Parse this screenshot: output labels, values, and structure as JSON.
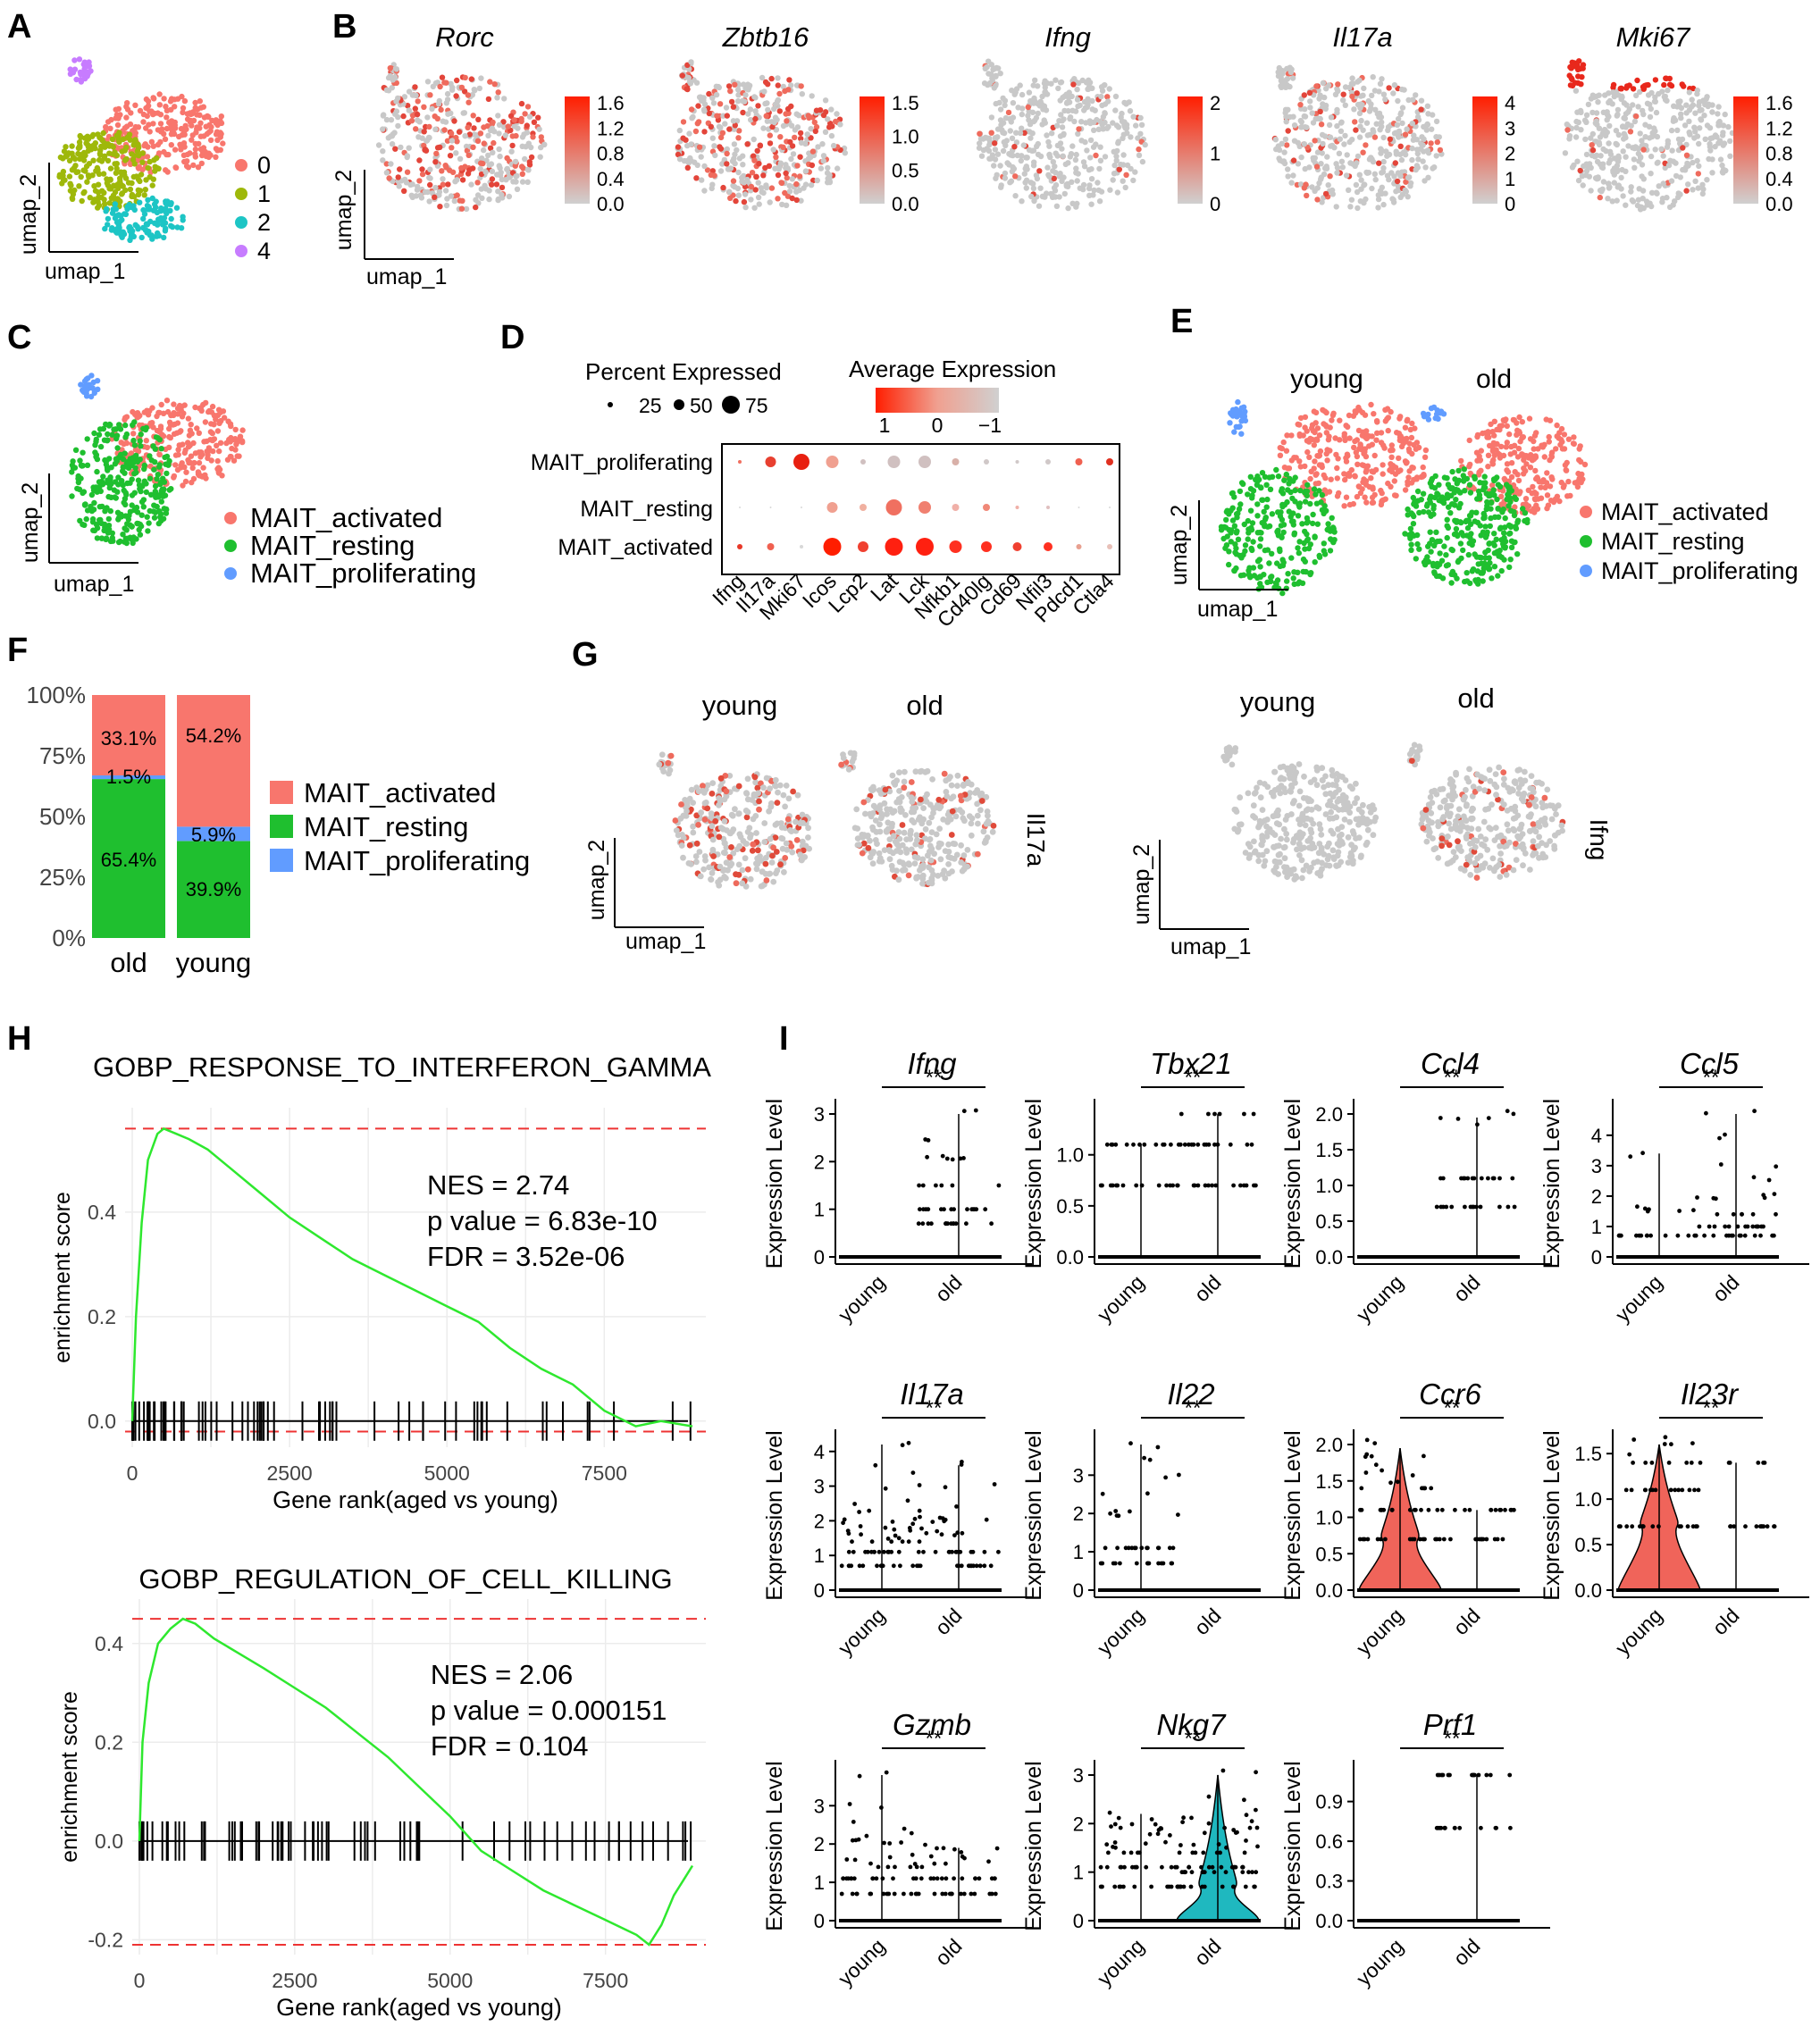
{
  "colors": {
    "activated": "#f8766d",
    "resting": "#1fbf2f",
    "proliferating": "#619cff",
    "c0": "#f8766d",
    "c1": "#9eb80a",
    "c2": "#1dc5c5",
    "c4": "#c77cff",
    "grey": "#c8c8c8",
    "red": "#e8281c",
    "violin_red": "#f0645a",
    "violin_teal": "#1fb8bf"
  },
  "panel_letters": [
    "A",
    "B",
    "C",
    "D",
    "E",
    "F",
    "G",
    "H",
    "I"
  ],
  "axis": {
    "x": "umap_1",
    "y": "umap_2"
  },
  "panelA": {
    "legend": [
      "0",
      "1",
      "2",
      "4"
    ]
  },
  "panelB": {
    "genes": [
      "Rorc",
      "Zbtb16",
      "Ifng",
      "Il17a",
      "Mki67"
    ],
    "scales": [
      [
        "1.6",
        "1.2",
        "0.8",
        "0.4",
        "0.0"
      ],
      [
        "1.5",
        "1.0",
        "0.5",
        "0.0"
      ],
      [
        "2",
        "1",
        "0"
      ],
      [
        "4",
        "3",
        "2",
        "1",
        "0"
      ],
      [
        "1.6",
        "1.2",
        "0.8",
        "0.4",
        "0.0"
      ]
    ]
  },
  "cell_types": [
    "MAIT_activated",
    "MAIT_resting",
    "MAIT_proliferating"
  ],
  "panelD": {
    "pct_title": "Percent Expressed",
    "pct_labels": [
      "25",
      "50",
      "75"
    ],
    "avg_title": "Average Expression",
    "avg_labels": [
      "1",
      "0",
      "−1"
    ],
    "rows": [
      "MAIT_proliferating",
      "MAIT_resting",
      "MAIT_activated"
    ],
    "genes": [
      "Ifng",
      "Il17a",
      "Mki67",
      "Icos",
      "Lcp2",
      "Lat",
      "Lck",
      "Nfkb1",
      "Cd40lg",
      "Cd69",
      "Nfil3",
      "Pdcd1",
      "Ctla4"
    ]
  },
  "panelE": {
    "titles": [
      "young",
      "old"
    ]
  },
  "panelG": {
    "titles": [
      "young",
      "old",
      "young",
      "old"
    ],
    "side_labels": [
      "Il17a",
      "Ifng"
    ]
  },
  "chart_data": [
    {
      "type": "bar",
      "title": "",
      "categories": [
        "old",
        "young"
      ],
      "yticks": [
        "0%",
        "25%",
        "50%",
        "75%",
        "100%"
      ],
      "ylim": [
        0,
        100
      ],
      "series": [
        {
          "name": "MAIT_resting",
          "values": [
            65.4,
            39.9
          ],
          "labels": [
            "65.4%",
            "39.9%"
          ]
        },
        {
          "name": "MAIT_proliferating",
          "values": [
            1.5,
            5.9
          ],
          "labels": [
            "1.5%",
            "5.9%"
          ]
        },
        {
          "name": "MAIT_activated",
          "values": [
            33.1,
            54.2
          ],
          "labels": [
            "33.1%",
            "54.2%"
          ]
        }
      ]
    },
    {
      "type": "line",
      "title": "GOBP_RESPONSE_TO_INTERFERON_GAMMA",
      "xlabel": "Gene rank(aged vs young)",
      "ylabel": "enrichment score",
      "xticks": [
        "0",
        "2500",
        "5000",
        "7500"
      ],
      "yticks": [
        "0.0",
        "0.2",
        "0.4"
      ],
      "stats": [
        "NES = 2.74",
        "p value = 6.83e-10",
        "FDR = 3.52e-06"
      ],
      "x": [
        0,
        60,
        150,
        250,
        400,
        500,
        700,
        900,
        1200,
        1500,
        2000,
        2500,
        3000,
        3500,
        4000,
        4500,
        5000,
        5500,
        6000,
        6500,
        7000,
        7500,
        8000,
        8400,
        8900
      ],
      "y": [
        0,
        0.2,
        0.38,
        0.5,
        0.55,
        0.56,
        0.55,
        0.54,
        0.52,
        0.49,
        0.44,
        0.39,
        0.35,
        0.31,
        0.28,
        0.25,
        0.22,
        0.19,
        0.14,
        0.1,
        0.07,
        0.02,
        -0.01,
        0.0,
        -0.01
      ],
      "dashed": [
        0.56,
        -0.02
      ]
    },
    {
      "type": "line",
      "title": "GOBP_REGULATION_OF_CELL_KILLING",
      "xlabel": "Gene rank(aged vs young)",
      "ylabel": "enrichment score",
      "xticks": [
        "0",
        "2500",
        "5000",
        "7500"
      ],
      "yticks": [
        "-0.2",
        "0.0",
        "0.2",
        "0.4"
      ],
      "stats": [
        "NES = 2.06",
        "p value = 0.000151",
        "FDR = 0.104"
      ],
      "x": [
        0,
        50,
        150,
        300,
        500,
        700,
        900,
        1200,
        1600,
        2000,
        2500,
        3000,
        3500,
        4000,
        4500,
        5000,
        5500,
        6000,
        6500,
        7000,
        7500,
        8000,
        8200,
        8400,
        8600,
        8800,
        8900
      ],
      "y": [
        0,
        0.2,
        0.32,
        0.4,
        0.43,
        0.45,
        0.44,
        0.41,
        0.38,
        0.35,
        0.31,
        0.27,
        0.22,
        0.17,
        0.11,
        0.05,
        -0.02,
        -0.06,
        -0.1,
        -0.13,
        -0.16,
        -0.19,
        -0.21,
        -0.17,
        -0.11,
        -0.07,
        -0.05
      ],
      "dashed": [
        0.45,
        -0.21
      ]
    }
  ],
  "panelI": {
    "ylabel": "Expression Level",
    "groups": [
      "young",
      "old"
    ],
    "sig": "**",
    "plots": [
      {
        "gene": "Ifng",
        "yticks": [
          "0",
          "1",
          "2",
          "3"
        ],
        "ymax": 3.0,
        "young": [
          0
        ],
        "old": [
          0,
          0.7,
          1,
          1.5,
          2,
          2.5,
          3
        ],
        "violin": ""
      },
      {
        "gene": "Tbx21",
        "yticks": [
          "0.0",
          "0.5",
          "1.0"
        ],
        "ymax": 1.4,
        "young": [
          0,
          0.7,
          1.1
        ],
        "old": [
          0,
          0.7,
          1.1,
          1.4
        ],
        "violin": ""
      },
      {
        "gene": "Ccl4",
        "yticks": [
          "0.0",
          "0.5",
          "1.0",
          "1.5",
          "2.0"
        ],
        "ymax": 2.0,
        "young": [
          0
        ],
        "old": [
          0,
          0.7,
          1.1,
          1.95
        ],
        "violin": ""
      },
      {
        "gene": "Ccl5",
        "yticks": [
          "0",
          "1",
          "2",
          "3",
          "4"
        ],
        "ymax": 4.7,
        "young": [
          0,
          0.7,
          1.6,
          3.4
        ],
        "old": [
          0,
          0.7,
          1,
          1.4,
          2,
          2.5,
          3,
          4,
          4.7
        ],
        "violin": ""
      },
      {
        "gene": "Il17a",
        "yticks": [
          "0",
          "1",
          "2",
          "3",
          "4"
        ],
        "ymax": 4.2,
        "young": [
          0,
          0.7,
          1.1,
          1.4,
          1.6,
          1.8,
          2,
          2.3,
          2.6,
          3,
          3.5,
          4.2
        ],
        "old": [
          0,
          0.7,
          1.1,
          1.6,
          2,
          2.3,
          3,
          3.6
        ],
        "violin": ""
      },
      {
        "gene": "Il22",
        "yticks": [
          "0",
          "1",
          "2",
          "3"
        ],
        "ymax": 3.8,
        "young": [
          0,
          0.7,
          1.1,
          2,
          2.5,
          3,
          3.5,
          3.8
        ],
        "old": [
          0
        ],
        "violin": ""
      },
      {
        "gene": "Ccr6",
        "yticks": [
          "0.0",
          "0.5",
          "1.0",
          "1.5",
          "2.0"
        ],
        "ymax": 1.95,
        "young": [
          0,
          0.7,
          1.1,
          1.4,
          1.6,
          1.95
        ],
        "old": [
          0,
          0.7,
          1.1
        ],
        "violin": "young"
      },
      {
        "gene": "Il23r",
        "yticks": [
          "0.0",
          "0.5",
          "1.0",
          "1.5"
        ],
        "ymax": 1.6,
        "young": [
          0,
          0.7,
          1.1,
          1.4,
          1.6
        ],
        "old": [
          0,
          0.7,
          1.4
        ],
        "violin": "young"
      },
      {
        "gene": "Gzmb",
        "yticks": [
          "0",
          "1",
          "2",
          "3"
        ],
        "ymax": 3.8,
        "young": [
          0,
          0.7,
          1.1,
          1.4,
          1.6,
          2,
          2.3,
          2.5,
          3,
          3.8
        ],
        "old": [
          0,
          0.7,
          1.1,
          1.6,
          1.9
        ],
        "violin": ""
      },
      {
        "gene": "Nkg7",
        "yticks": [
          "0",
          "1",
          "2",
          "3"
        ],
        "ymax": 3.0,
        "young": [
          0,
          0.7,
          1.1,
          1.4,
          1.6,
          1.8,
          2,
          2.2
        ],
        "old": [
          0,
          0.7,
          1,
          1.1,
          1.4,
          1.6,
          1.8,
          2,
          2.2,
          2.5,
          3
        ],
        "violin": "old"
      },
      {
        "gene": "Prf1",
        "yticks": [
          "0.0",
          "0.3",
          "0.6",
          "0.9"
        ],
        "ymax": 1.1,
        "young": [
          0
        ],
        "old": [
          0,
          0.7,
          1.1
        ],
        "violin": ""
      }
    ]
  }
}
